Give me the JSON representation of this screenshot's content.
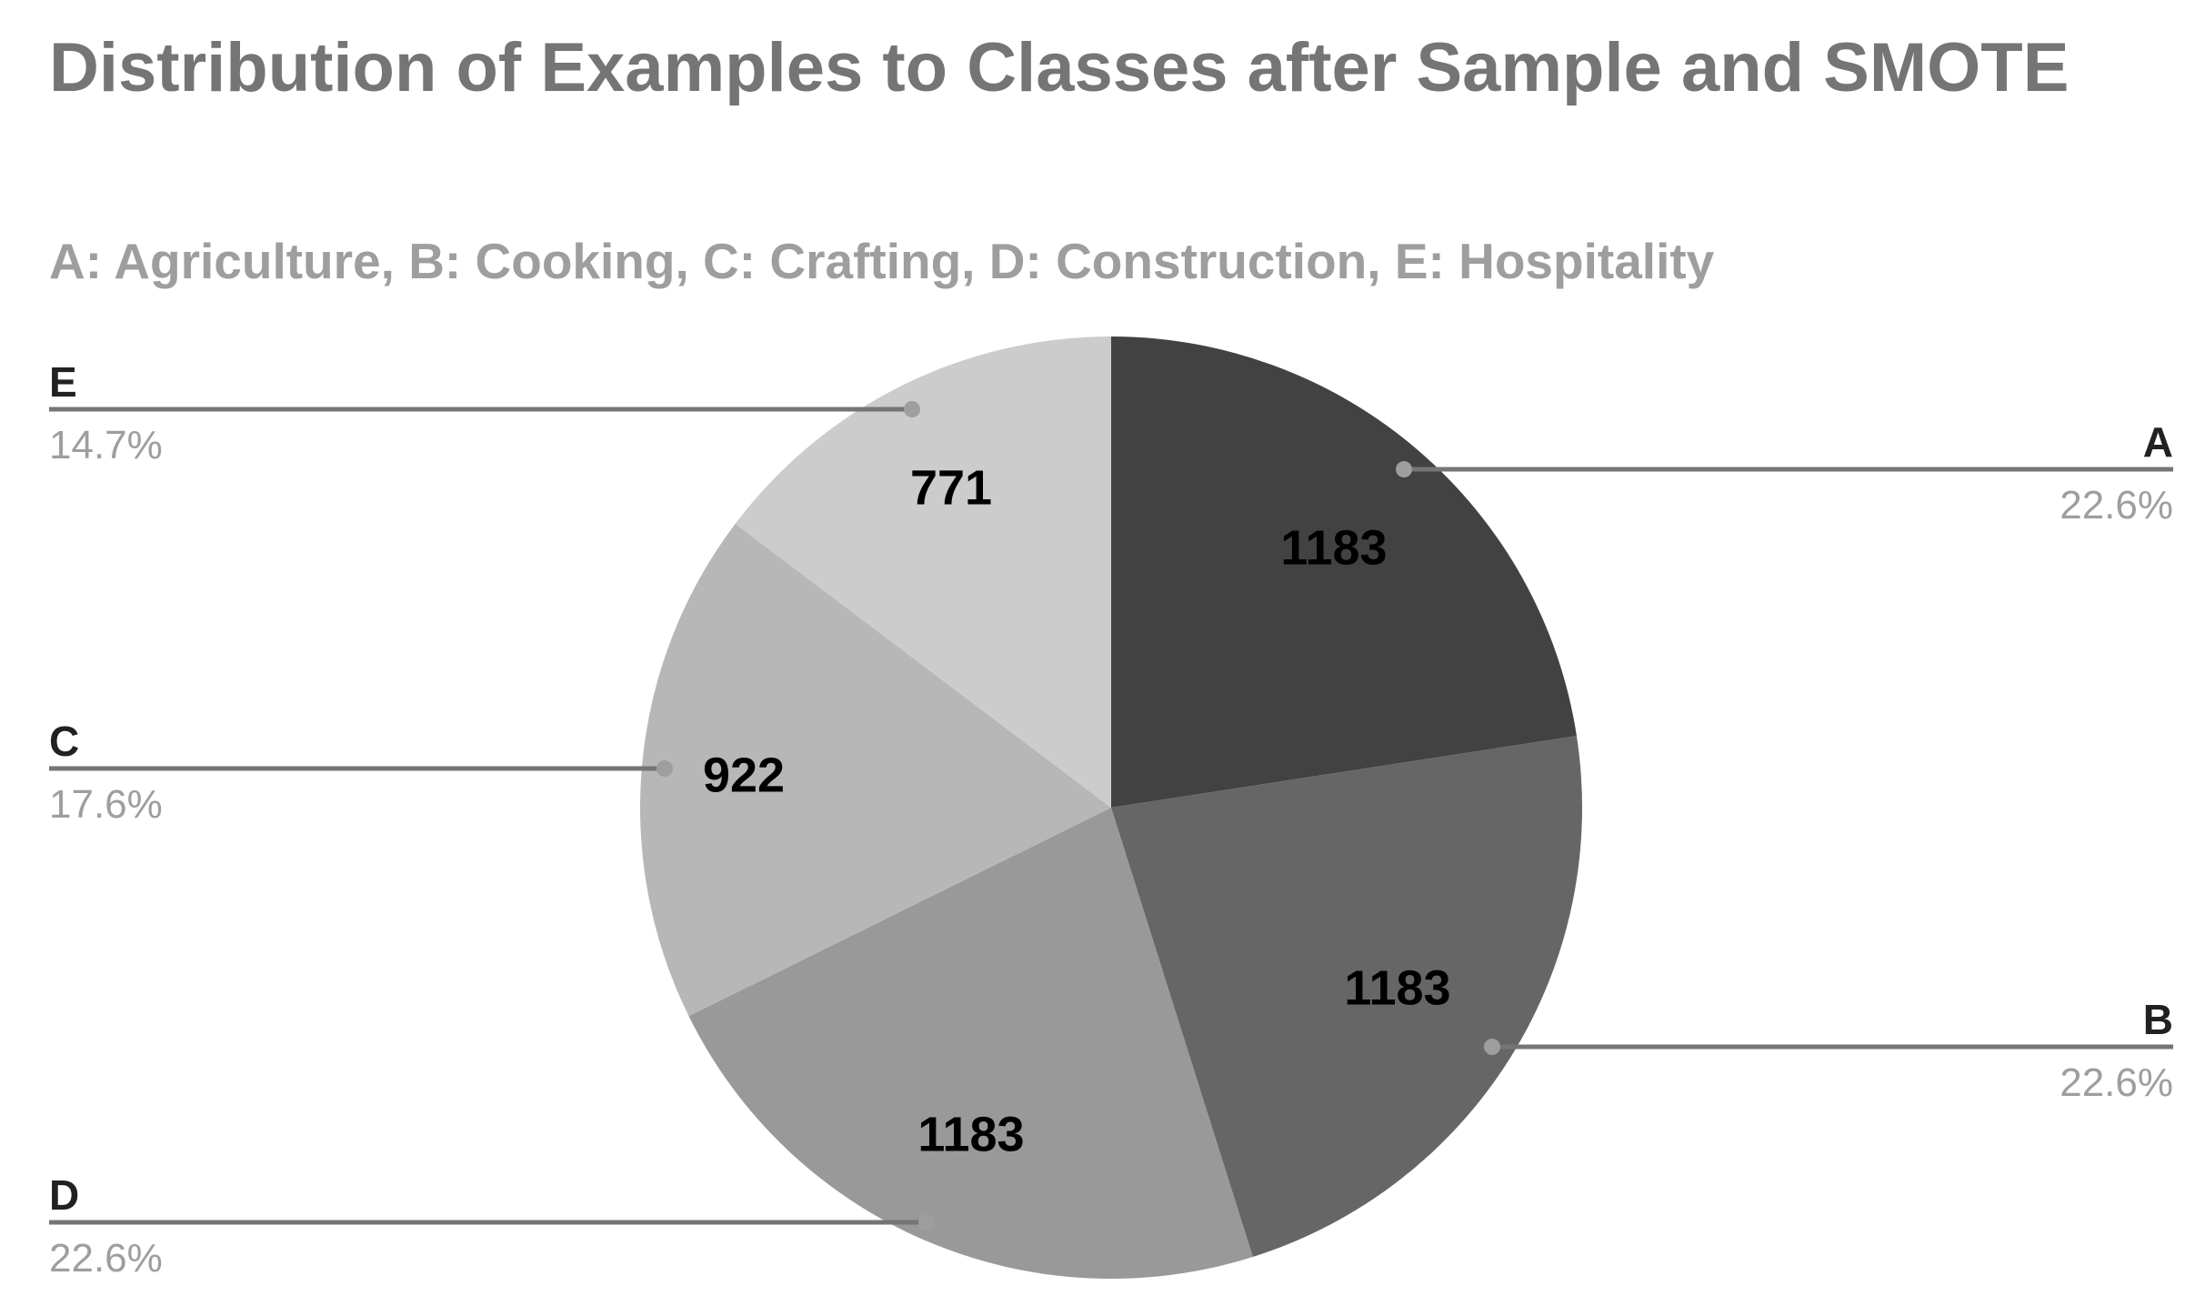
{
  "chart_data": {
    "type": "pie",
    "title": "Distribution of Examples to Classes after Sample and SMOTE",
    "subtitle": "A: Agriculture, B: Cooking, C: Crafting, D: Construction, E: Hospitality",
    "slices": [
      {
        "label": "A",
        "value": 1183,
        "percent": "22.6%",
        "color": "#424242"
      },
      {
        "label": "B",
        "value": 1183,
        "percent": "22.6%",
        "color": "#666666"
      },
      {
        "label": "D",
        "value": 1183,
        "percent": "22.6%",
        "color": "#999999"
      },
      {
        "label": "C",
        "value": 922,
        "percent": "17.6%",
        "color": "#b7b7b7"
      },
      {
        "label": "E",
        "value": 771,
        "percent": "14.7%",
        "color": "#cccccc"
      }
    ],
    "legend": "none",
    "label_style": "callouts"
  }
}
